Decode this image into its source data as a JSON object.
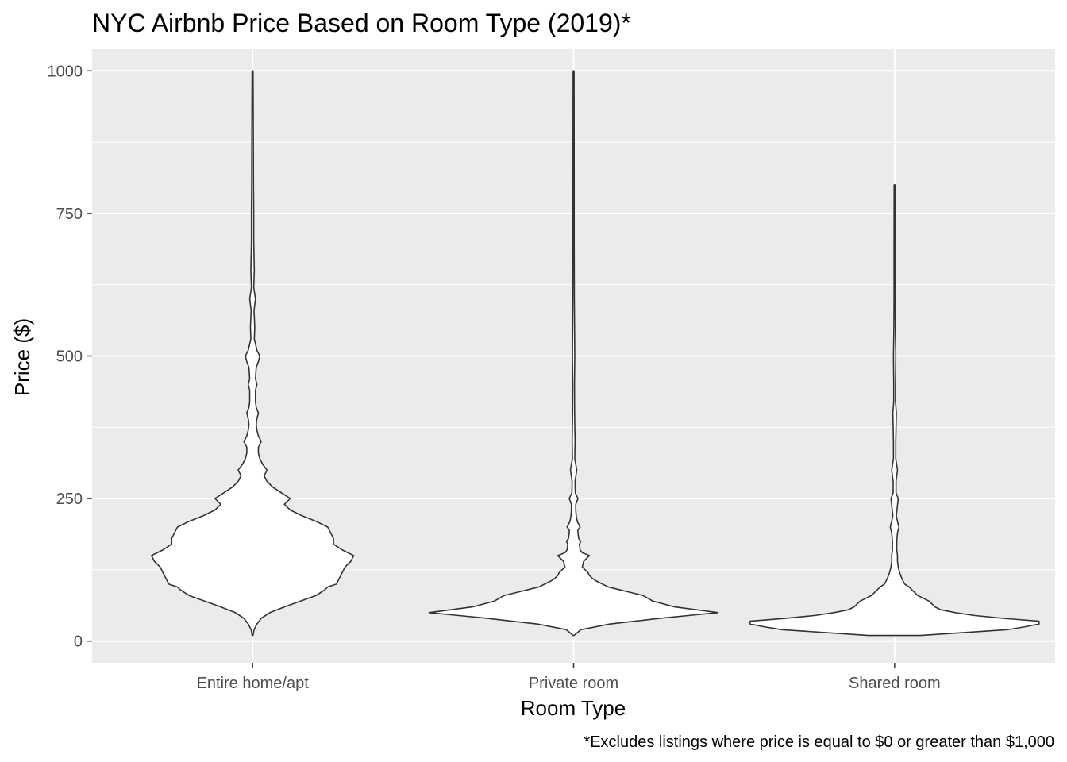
{
  "chart_data": {
    "type": "violin",
    "title": "NYC Airbnb Price Based on Room Type (2019)*",
    "xlabel": "Room Type",
    "ylabel": "Price ($)",
    "caption": "*Excludes listings where price is equal to $0 or greater than $1,000",
    "categories": [
      "Entire home/apt",
      "Private room",
      "Shared room"
    ],
    "ylim": [
      -38,
      1038
    ],
    "yticks": [
      0,
      250,
      500,
      750,
      1000
    ],
    "grid": true,
    "colors": {
      "panel": "#ebebeb",
      "grid": "#ffffff",
      "violin_fill": "#ffffff",
      "violin_stroke": "#333333"
    },
    "violins": [
      {
        "category": "Entire home/apt",
        "min": 10,
        "max": 1000,
        "profile": [
          [
            10,
            0.0
          ],
          [
            20,
            0.01
          ],
          [
            30,
            0.03
          ],
          [
            40,
            0.06
          ],
          [
            50,
            0.12
          ],
          [
            60,
            0.22
          ],
          [
            70,
            0.33
          ],
          [
            80,
            0.44
          ],
          [
            90,
            0.5
          ],
          [
            95,
            0.52
          ],
          [
            100,
            0.58
          ],
          [
            110,
            0.6
          ],
          [
            120,
            0.62
          ],
          [
            130,
            0.64
          ],
          [
            140,
            0.68
          ],
          [
            150,
            0.7
          ],
          [
            160,
            0.62
          ],
          [
            170,
            0.56
          ],
          [
            180,
            0.56
          ],
          [
            190,
            0.54
          ],
          [
            200,
            0.52
          ],
          [
            210,
            0.44
          ],
          [
            220,
            0.34
          ],
          [
            230,
            0.26
          ],
          [
            240,
            0.22
          ],
          [
            250,
            0.26
          ],
          [
            260,
            0.2
          ],
          [
            270,
            0.14
          ],
          [
            280,
            0.1
          ],
          [
            290,
            0.08
          ],
          [
            300,
            0.1
          ],
          [
            310,
            0.07
          ],
          [
            320,
            0.05
          ],
          [
            330,
            0.04
          ],
          [
            340,
            0.04
          ],
          [
            350,
            0.06
          ],
          [
            360,
            0.04
          ],
          [
            370,
            0.03
          ],
          [
            380,
            0.025
          ],
          [
            390,
            0.03
          ],
          [
            400,
            0.04
          ],
          [
            410,
            0.025
          ],
          [
            420,
            0.02
          ],
          [
            440,
            0.02
          ],
          [
            450,
            0.03
          ],
          [
            460,
            0.02
          ],
          [
            480,
            0.025
          ],
          [
            490,
            0.04
          ],
          [
            500,
            0.05
          ],
          [
            510,
            0.03
          ],
          [
            530,
            0.012
          ],
          [
            550,
            0.015
          ],
          [
            580,
            0.01
          ],
          [
            600,
            0.02
          ],
          [
            620,
            0.008
          ],
          [
            650,
            0.012
          ],
          [
            700,
            0.008
          ],
          [
            750,
            0.008
          ],
          [
            800,
            0.006
          ],
          [
            900,
            0.005
          ],
          [
            1000,
            0.003
          ]
        ]
      },
      {
        "category": "Private room",
        "min": 10,
        "max": 1000,
        "profile": [
          [
            10,
            0.0
          ],
          [
            20,
            0.05
          ],
          [
            30,
            0.25
          ],
          [
            40,
            0.6
          ],
          [
            45,
            0.8
          ],
          [
            50,
            1.0
          ],
          [
            55,
            0.85
          ],
          [
            60,
            0.7
          ],
          [
            70,
            0.55
          ],
          [
            80,
            0.48
          ],
          [
            85,
            0.4
          ],
          [
            90,
            0.32
          ],
          [
            95,
            0.24
          ],
          [
            100,
            0.2
          ],
          [
            105,
            0.16
          ],
          [
            110,
            0.13
          ],
          [
            115,
            0.11
          ],
          [
            120,
            0.1
          ],
          [
            125,
            0.08
          ],
          [
            130,
            0.06
          ],
          [
            140,
            0.07
          ],
          [
            145,
            0.09
          ],
          [
            150,
            0.11
          ],
          [
            155,
            0.06
          ],
          [
            160,
            0.045
          ],
          [
            170,
            0.04
          ],
          [
            175,
            0.05
          ],
          [
            180,
            0.035
          ],
          [
            190,
            0.03
          ],
          [
            195,
            0.03
          ],
          [
            200,
            0.045
          ],
          [
            210,
            0.025
          ],
          [
            220,
            0.018
          ],
          [
            230,
            0.015
          ],
          [
            240,
            0.015
          ],
          [
            250,
            0.03
          ],
          [
            260,
            0.012
          ],
          [
            280,
            0.01
          ],
          [
            300,
            0.022
          ],
          [
            320,
            0.008
          ],
          [
            350,
            0.01
          ],
          [
            400,
            0.007
          ],
          [
            450,
            0.006
          ],
          [
            500,
            0.008
          ],
          [
            600,
            0.005
          ],
          [
            700,
            0.004
          ],
          [
            800,
            0.004
          ],
          [
            1000,
            0.003
          ]
        ]
      },
      {
        "category": "Shared room",
        "min": 10,
        "max": 800,
        "profile": [
          [
            10,
            0.18
          ],
          [
            15,
            0.48
          ],
          [
            20,
            0.78
          ],
          [
            25,
            0.9
          ],
          [
            30,
            1.0
          ],
          [
            35,
            1.0
          ],
          [
            40,
            0.75
          ],
          [
            45,
            0.55
          ],
          [
            50,
            0.42
          ],
          [
            55,
            0.32
          ],
          [
            60,
            0.28
          ],
          [
            65,
            0.26
          ],
          [
            70,
            0.24
          ],
          [
            75,
            0.2
          ],
          [
            80,
            0.16
          ],
          [
            85,
            0.14
          ],
          [
            90,
            0.12
          ],
          [
            95,
            0.1
          ],
          [
            100,
            0.07
          ],
          [
            110,
            0.05
          ],
          [
            120,
            0.035
          ],
          [
            130,
            0.025
          ],
          [
            140,
            0.02
          ],
          [
            150,
            0.02
          ],
          [
            160,
            0.015
          ],
          [
            175,
            0.015
          ],
          [
            190,
            0.02
          ],
          [
            200,
            0.03
          ],
          [
            210,
            0.02
          ],
          [
            220,
            0.012
          ],
          [
            250,
            0.025
          ],
          [
            260,
            0.01
          ],
          [
            280,
            0.01
          ],
          [
            300,
            0.02
          ],
          [
            320,
            0.008
          ],
          [
            350,
            0.008
          ],
          [
            400,
            0.012
          ],
          [
            420,
            0.006
          ],
          [
            450,
            0.006
          ],
          [
            500,
            0.008
          ],
          [
            550,
            0.005
          ],
          [
            600,
            0.004
          ],
          [
            700,
            0.004
          ],
          [
            800,
            0.003
          ]
        ]
      }
    ]
  }
}
